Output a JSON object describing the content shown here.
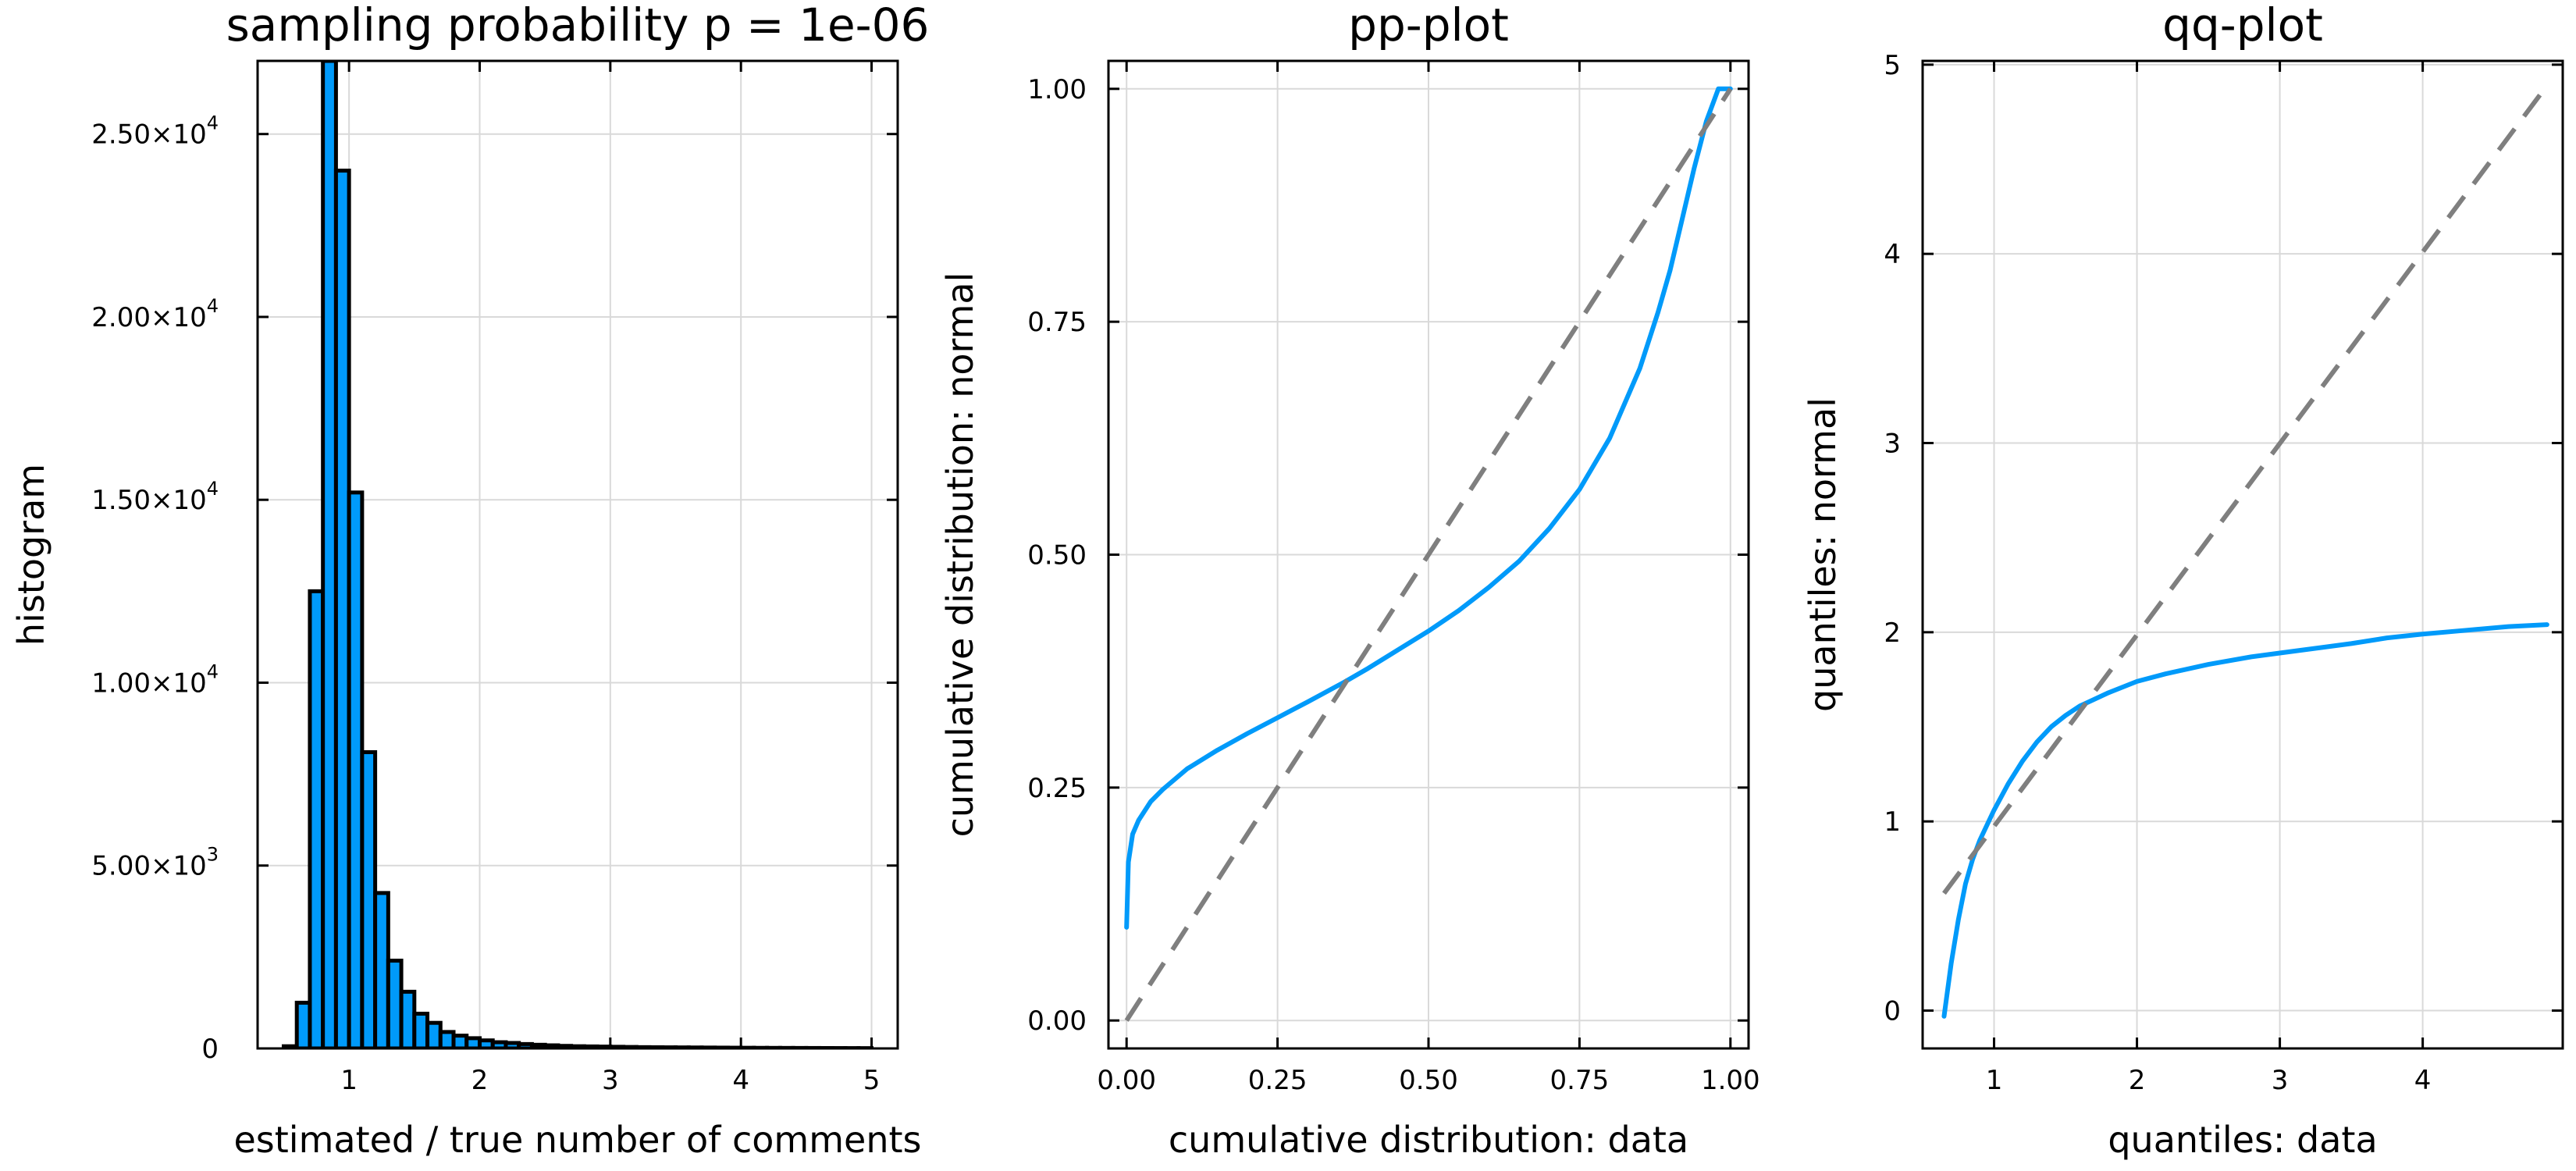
{
  "chart_data": [
    {
      "type": "bar",
      "title": "sampling probability p = 1e-06",
      "xlabel": "estimated / true number of comments",
      "ylabel": "histogram",
      "xlim": [
        0.3,
        5.2
      ],
      "ylim": [
        0,
        27000
      ],
      "xticks": [
        1,
        2,
        3,
        4,
        5
      ],
      "xtick_labels": [
        "1",
        "2",
        "3",
        "4",
        "5"
      ],
      "yticks": [
        0,
        5000,
        10000,
        15000,
        20000,
        25000
      ],
      "ytick_labels": [
        {
          "m": "0",
          "e": ""
        },
        {
          "m": "5.00×10",
          "e": "3"
        },
        {
          "m": "1.00×10",
          "e": "4"
        },
        {
          "m": "1.50×10",
          "e": "4"
        },
        {
          "m": "2.00×10",
          "e": "4"
        },
        {
          "m": "2.50×10",
          "e": "4"
        }
      ],
      "grid": true,
      "bar_color": "#009AFA",
      "bin_width": 0.1,
      "bin_starts": [
        0.5,
        0.6,
        0.7,
        0.8,
        0.9,
        1.0,
        1.1,
        1.2,
        1.3,
        1.4,
        1.5,
        1.6,
        1.7,
        1.8,
        1.9,
        2.0,
        2.1,
        2.2,
        2.3,
        2.4,
        2.5,
        2.6,
        2.7,
        2.8,
        2.9,
        3.0,
        3.1,
        3.2,
        3.3,
        3.4,
        3.5,
        3.6,
        3.7,
        3.8,
        3.9,
        4.0,
        4.1,
        4.2,
        4.3,
        4.4,
        4.5,
        4.6,
        4.7,
        4.8,
        4.9
      ],
      "values": [
        60,
        1250,
        12500,
        27000,
        24000,
        15200,
        8100,
        4250,
        2400,
        1550,
        950,
        700,
        450,
        350,
        280,
        220,
        170,
        150,
        120,
        100,
        85,
        70,
        60,
        55,
        50,
        45,
        40,
        35,
        32,
        30,
        28,
        26,
        24,
        22,
        20,
        18,
        16,
        15,
        14,
        13,
        12,
        11,
        10,
        9,
        8
      ]
    },
    {
      "type": "line",
      "title": "pp-plot",
      "xlabel": "cumulative distribution: data",
      "ylabel": "cumulative distribution: normal",
      "xlim": [
        -0.03,
        1.03
      ],
      "ylim": [
        -0.03,
        1.03
      ],
      "xticks": [
        0,
        0.25,
        0.5,
        0.75,
        1.0
      ],
      "xtick_labels": [
        "0.00",
        "0.25",
        "0.50",
        "0.75",
        "1.00"
      ],
      "yticks": [
        0,
        0.25,
        0.5,
        0.75,
        1.0
      ],
      "ytick_labels": [
        "0.00",
        "0.25",
        "0.50",
        "0.75",
        "1.00"
      ],
      "grid": true,
      "series": [
        {
          "color": "#009AFA",
          "style": "solid",
          "x": [
            0.0,
            0.003,
            0.01,
            0.02,
            0.04,
            0.06,
            0.1,
            0.15,
            0.2,
            0.25,
            0.3,
            0.36,
            0.4,
            0.45,
            0.5,
            0.55,
            0.6,
            0.65,
            0.7,
            0.75,
            0.8,
            0.85,
            0.88,
            0.9,
            0.92,
            0.94,
            0.96,
            0.98,
            0.99,
            1.0
          ],
          "y": [
            0.1,
            0.17,
            0.2,
            0.215,
            0.235,
            0.248,
            0.27,
            0.29,
            0.308,
            0.325,
            0.342,
            0.363,
            0.378,
            0.398,
            0.418,
            0.44,
            0.465,
            0.493,
            0.528,
            0.57,
            0.625,
            0.7,
            0.76,
            0.805,
            0.86,
            0.915,
            0.965,
            1.0,
            1.0,
            1.0
          ]
        },
        {
          "color": "#7F7F7F",
          "style": "dashed",
          "x": [
            0,
            1
          ],
          "y": [
            0,
            1
          ]
        }
      ]
    },
    {
      "type": "line",
      "title": "qq-plot",
      "xlabel": "quantiles: data",
      "ylabel": "quantiles: normal",
      "xlim": [
        0.5,
        4.98
      ],
      "ylim": [
        -0.2,
        5.02
      ],
      "xticks": [
        1,
        2,
        3,
        4
      ],
      "xtick_labels": [
        "1",
        "2",
        "3",
        "4"
      ],
      "yticks": [
        0,
        1,
        2,
        3,
        4,
        5
      ],
      "ytick_labels": [
        "0",
        "1",
        "2",
        "3",
        "4",
        "5"
      ],
      "grid": true,
      "series": [
        {
          "color": "#009AFA",
          "style": "solid",
          "x": [
            0.65,
            0.7,
            0.75,
            0.8,
            0.85,
            0.9,
            1.0,
            1.1,
            1.2,
            1.3,
            1.4,
            1.5,
            1.6,
            1.8,
            2.0,
            2.2,
            2.5,
            2.8,
            3.0,
            3.3,
            3.5,
            3.75,
            4.0,
            4.3,
            4.6,
            4.87
          ],
          "y": [
            -0.03,
            0.25,
            0.48,
            0.67,
            0.8,
            0.9,
            1.06,
            1.2,
            1.32,
            1.42,
            1.5,
            1.56,
            1.61,
            1.68,
            1.74,
            1.78,
            1.83,
            1.87,
            1.89,
            1.92,
            1.94,
            1.97,
            1.99,
            2.01,
            2.03,
            2.04
          ]
        },
        {
          "color": "#7F7F7F",
          "style": "dashed",
          "x": [
            0.65,
            4.87
          ],
          "y": [
            0.62,
            4.89
          ]
        }
      ]
    }
  ]
}
